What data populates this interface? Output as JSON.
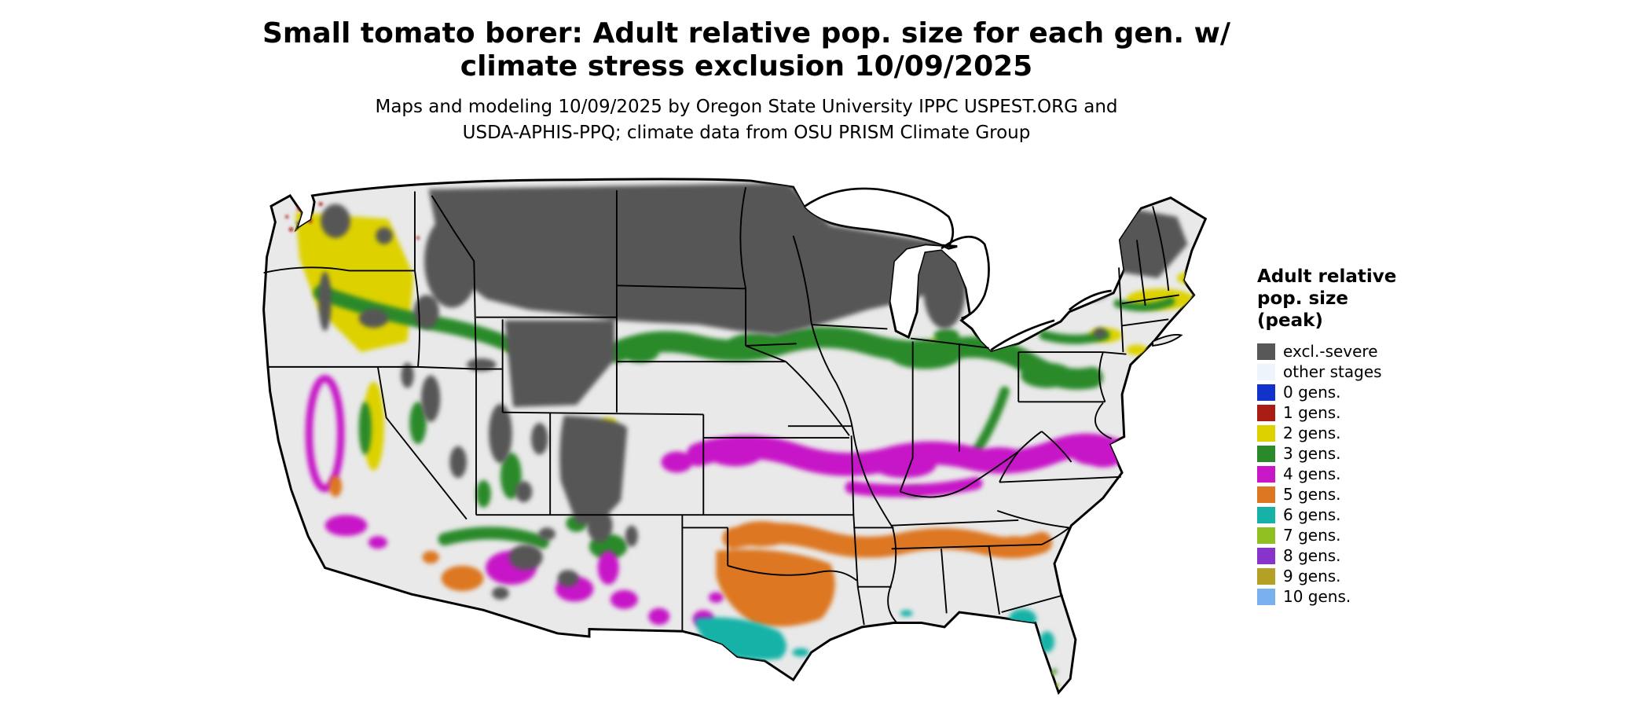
{
  "title": {
    "line1": "Small tomato borer: Adult relative pop. size for each gen. w/",
    "line2": "climate stress exclusion 10/09/2025"
  },
  "subtitle": {
    "line1": "Maps and modeling 10/09/2025 by Oregon State University IPPC USPEST.ORG and",
    "line2": "USDA-APHIS-PPQ; climate data from OSU PRISM Climate Group"
  },
  "legend": {
    "title_lines": [
      "Adult relative",
      "pop. size",
      "(peak)"
    ],
    "items": [
      {
        "label": "excl.-severe",
        "color": "#575757"
      },
      {
        "label": "other stages",
        "color": "#eef4fb"
      },
      {
        "label": "0 gens.",
        "color": "#1133cc"
      },
      {
        "label": "1 gens.",
        "color": "#a81c14"
      },
      {
        "label": "2 gens.",
        "color": "#ddd200"
      },
      {
        "label": "3 gens.",
        "color": "#2a8a2a"
      },
      {
        "label": "4 gens.",
        "color": "#c717c7"
      },
      {
        "label": "5 gens.",
        "color": "#dd7722"
      },
      {
        "label": "6 gens.",
        "color": "#17b2a7"
      },
      {
        "label": "7 gens.",
        "color": "#8fbf21"
      },
      {
        "label": "8 gens.",
        "color": "#8833cc"
      },
      {
        "label": "9 gens.",
        "color": "#b3a024"
      },
      {
        "label": "10 gens.",
        "color": "#79b0f0"
      }
    ]
  },
  "map": {
    "base_color": "#e9e9e9",
    "outline_color": "#000000",
    "water_color": "#ffffff"
  }
}
